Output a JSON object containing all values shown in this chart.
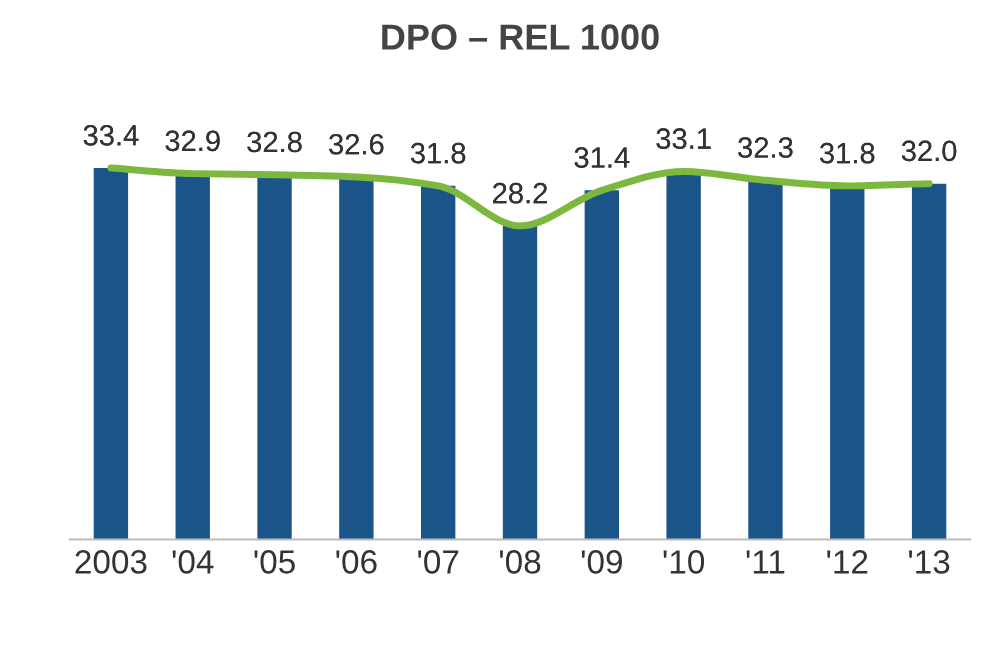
{
  "chart_data": {
    "type": "bar",
    "title": "DPO – REL 1000",
    "categories": [
      "2003",
      "'04",
      "'05",
      "'06",
      "'07",
      "'08",
      "'09",
      "'10",
      "'11",
      "'12",
      "'13"
    ],
    "series": [
      {
        "color": "#1b5488",
        "values": [
          33.4,
          32.9,
          32.8,
          32.6,
          31.8,
          28.2,
          31.4,
          33.1,
          32.3,
          31.8,
          32.0
        ],
        "value_labels": [
          "33.4",
          "32.9",
          "32.8",
          "32.6",
          "31.8",
          "28.2",
          "31.4",
          "33.1",
          "32.3",
          "31.8",
          "32.0"
        ]
      },
      {
        "type": "line",
        "color": "#7cb83e",
        "values": [
          33.4,
          32.9,
          32.8,
          32.6,
          31.8,
          28.2,
          31.4,
          33.1,
          32.3,
          31.8,
          32.0
        ]
      }
    ],
    "tick_labels": "x",
    "legend": false
  }
}
